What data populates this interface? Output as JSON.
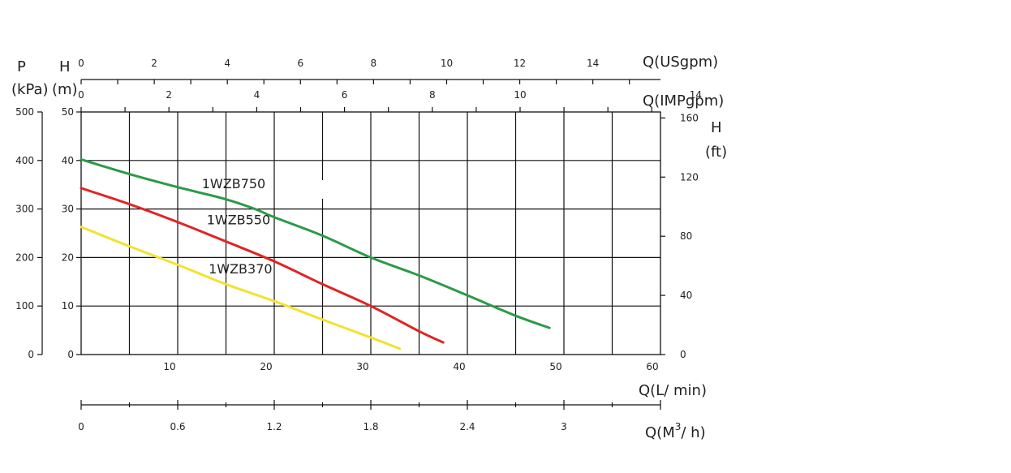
{
  "chart_data": {
    "type": "line",
    "title": "",
    "xlabel": "Q(L/ min)",
    "ylabel": "H (m)",
    "xlim": [
      0,
      60
    ],
    "ylim": [
      0,
      50
    ],
    "grid": true,
    "x_ticks": [
      "10",
      "20",
      "30",
      "40",
      "50",
      "60"
    ],
    "y_ticks": [
      "0",
      "10",
      "20",
      "30",
      "40",
      "50"
    ],
    "left_axis": {
      "p_title": "P",
      "p_unit": "(kPa)",
      "h_title": "H",
      "h_unit": "(m)",
      "p_ticks": [
        "0",
        "100",
        "200",
        "300",
        "400",
        "500"
      ]
    },
    "right_axis": {
      "title": "H",
      "unit": "(ft)",
      "ticks": [
        "0",
        "40",
        "80",
        "120",
        "160"
      ]
    },
    "top_axes": {
      "usgpm_label": "Q(USgpm)",
      "usgpm_ticks": [
        "0",
        "2",
        "4",
        "6",
        "8",
        "10",
        "12",
        "14"
      ],
      "impgpm_label": "Q(IMPgpm)",
      "impgpm_ticks": [
        "0",
        "2",
        "4",
        "6",
        "8",
        "10",
        "14"
      ]
    },
    "bottom_axis": {
      "label": "Q(M³/ h)",
      "label_main": "Q(M",
      "label_sup": "3",
      "label_tail": "/ h)",
      "ticks": [
        "0",
        "0.6",
        "1.2",
        "1.8",
        "2.4",
        "3"
      ]
    },
    "series": [
      {
        "name": "1WZB750",
        "color": "#2a9a48",
        "x": [
          0,
          5,
          10,
          15,
          18,
          20,
          25,
          30,
          35,
          40,
          45,
          48.5
        ],
        "y": [
          40.2,
          37.2,
          34.5,
          32,
          30,
          28.3,
          24.5,
          20,
          16.3,
          12.2,
          8,
          5.5
        ]
      },
      {
        "name": "1WZB550",
        "color": "#e02424",
        "x": [
          0,
          5,
          10,
          15,
          20,
          25,
          30,
          35,
          37.5
        ],
        "y": [
          34.3,
          31,
          27.3,
          23.3,
          19.2,
          14.5,
          10,
          4.8,
          2.5
        ]
      },
      {
        "name": "1WZB370",
        "color": "#f2e230",
        "x": [
          0,
          5,
          10,
          15,
          20,
          25,
          30,
          33
        ],
        "y": [
          26.3,
          22.3,
          18.5,
          14.5,
          11,
          7.2,
          3.5,
          1.2
        ]
      }
    ]
  }
}
